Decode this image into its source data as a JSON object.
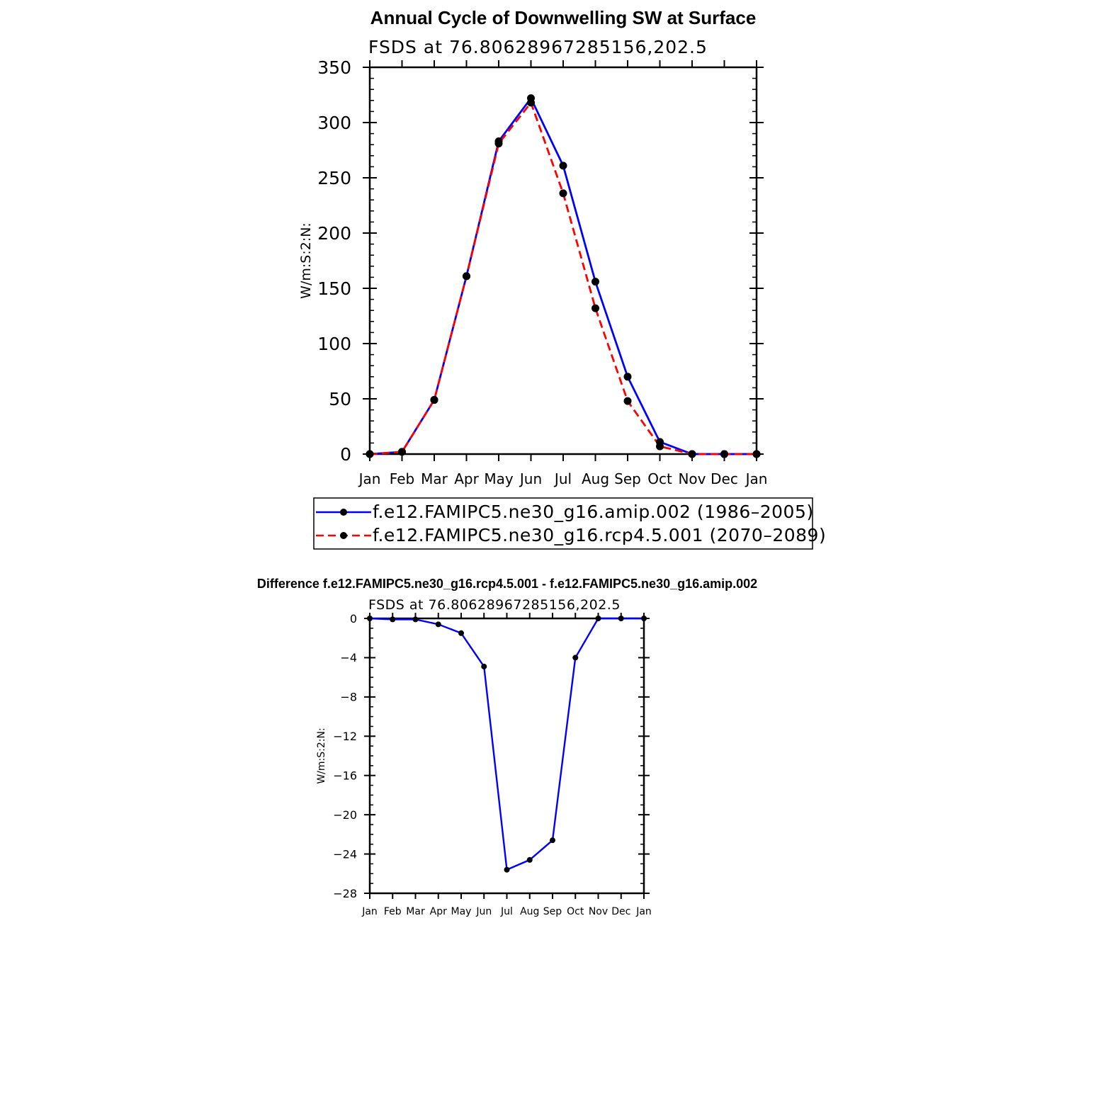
{
  "chart_data": [
    {
      "type": "line",
      "title": "Annual Cycle of Downwelling SW at Surface",
      "subtitle": "FSDS at 76.80628967285156,202.5",
      "xlabel": "",
      "ylabel": "W/m:S:2:N:",
      "categories": [
        "Jan",
        "Feb",
        "Mar",
        "Apr",
        "May",
        "Jun",
        "Jul",
        "Aug",
        "Sep",
        "Oct",
        "Nov",
        "Dec",
        "Jan"
      ],
      "ylim": [
        0,
        350
      ],
      "yticks": [
        0,
        50,
        100,
        150,
        200,
        250,
        300,
        350
      ],
      "grid": false,
      "legend_position": "below",
      "series": [
        {
          "name": "f.e12.FAMIPC5.ne30_g16.amip.002 (1986–2005)",
          "color": "#0000ff",
          "dash": "solid",
          "values": [
            0,
            2,
            49,
            161,
            283,
            322,
            261,
            156,
            70,
            11,
            0,
            0,
            0
          ]
        },
        {
          "name": "f.e12.FAMIPC5.ne30_g16.rcp4.5.001 (2070–2089)",
          "color": "#ff0000",
          "dash": "dashed",
          "values": [
            0,
            2,
            49,
            161,
            281,
            318,
            236,
            132,
            48,
            7,
            0,
            0,
            0
          ]
        }
      ]
    },
    {
      "type": "line",
      "title": "Difference f.e12.FAMIPC5.ne30_g16.rcp4.5.001 - f.e12.FAMIPC5.ne30_g16.amip.002",
      "subtitle": "FSDS at 76.80628967285156,202.5",
      "xlabel": "",
      "ylabel": "W/m:S:2:N:",
      "categories": [
        "Jan",
        "Feb",
        "Mar",
        "Apr",
        "May",
        "Jun",
        "Jul",
        "Aug",
        "Sep",
        "Oct",
        "Nov",
        "Dec",
        "Jan"
      ],
      "ylim": [
        -28,
        0
      ],
      "yticks": [
        0,
        -4,
        -8,
        -12,
        -16,
        -20,
        -24,
        -28
      ],
      "ytick_labels": [
        "0",
        "−4",
        "−8",
        "−12",
        "−16",
        "−20",
        "−24",
        "−28"
      ],
      "grid": false,
      "series": [
        {
          "color": "#0000ff",
          "dash": "solid",
          "values": [
            0,
            -0.1,
            -0.1,
            -0.6,
            -1.5,
            -4.9,
            -25.6,
            -24.6,
            -22.6,
            -4.0,
            0,
            0,
            0
          ]
        }
      ]
    }
  ]
}
